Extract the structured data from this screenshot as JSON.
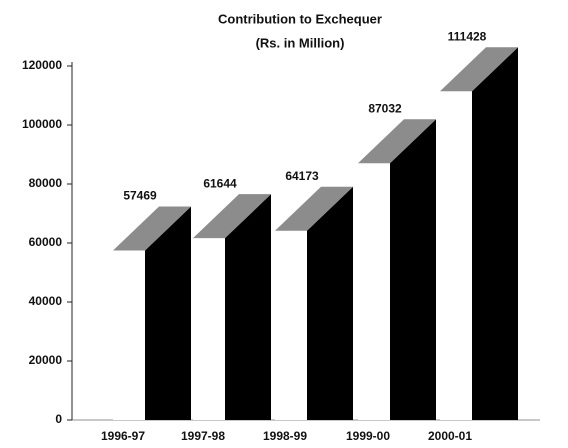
{
  "chart_data": {
    "type": "bar3d",
    "title": "Contribution to Exchequer",
    "subtitle": "(Rs. in Million)",
    "categories": [
      "1996-97",
      "1997-98",
      "1998-99",
      "1999-00",
      "2000-01"
    ],
    "values": [
      57469,
      61644,
      64173,
      87032,
      111428
    ],
    "ylim": [
      0,
      120000
    ],
    "yticks": [
      0,
      20000,
      40000,
      60000,
      80000,
      100000,
      120000
    ],
    "side_color": "#000000",
    "top_color": "#8c8c8c"
  }
}
